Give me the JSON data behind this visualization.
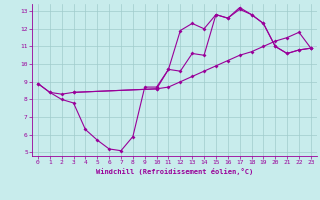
{
  "xlabel": "Windchill (Refroidissement éolien,°C)",
  "bg_color": "#c8ecec",
  "line_color": "#990099",
  "grid_color": "#a0cccc",
  "xlim": [
    -0.5,
    23.5
  ],
  "ylim": [
    4.8,
    13.4
  ],
  "xticks": [
    0,
    1,
    2,
    3,
    4,
    5,
    6,
    7,
    8,
    9,
    10,
    11,
    12,
    13,
    14,
    15,
    16,
    17,
    18,
    19,
    20,
    21,
    22,
    23
  ],
  "yticks": [
    5,
    6,
    7,
    8,
    9,
    10,
    11,
    12,
    13
  ],
  "line1_x": [
    0,
    1,
    2,
    3,
    4,
    5,
    6,
    7,
    8,
    9,
    10,
    11,
    12,
    13,
    14,
    15,
    16,
    17,
    18,
    19,
    20,
    21,
    22,
    23
  ],
  "line1_y": [
    8.9,
    8.4,
    8.0,
    7.8,
    6.3,
    5.7,
    5.2,
    5.1,
    5.9,
    8.7,
    8.7,
    9.7,
    9.6,
    10.6,
    10.5,
    12.8,
    12.6,
    13.2,
    12.8,
    12.3,
    11.0,
    10.6,
    10.8,
    10.9
  ],
  "line2_x": [
    0,
    1,
    2,
    3,
    10,
    11,
    12,
    13,
    14,
    15,
    16,
    17,
    18,
    19,
    20,
    21,
    22,
    23
  ],
  "line2_y": [
    8.9,
    8.4,
    8.3,
    8.4,
    8.6,
    8.7,
    9.0,
    9.3,
    9.6,
    9.9,
    10.2,
    10.5,
    10.7,
    11.0,
    11.3,
    11.5,
    11.8,
    10.9
  ],
  "line3_x": [
    3,
    10,
    11,
    12,
    13,
    14,
    15,
    16,
    17,
    18,
    19,
    20,
    21,
    22,
    23
  ],
  "line3_y": [
    8.4,
    8.6,
    9.7,
    11.9,
    12.3,
    12.0,
    12.8,
    12.6,
    13.1,
    12.8,
    12.3,
    11.0,
    10.6,
    10.8,
    10.9
  ]
}
